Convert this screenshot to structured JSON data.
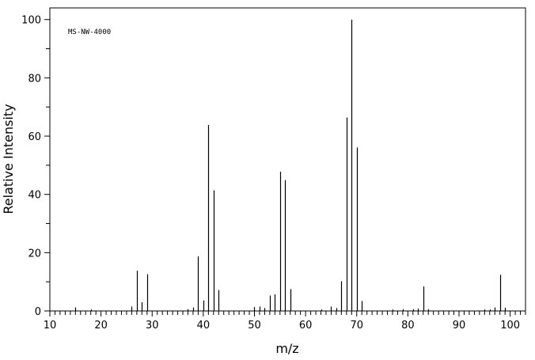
{
  "chart_data": {
    "type": "bar",
    "subtype": "mass-spectrum-stick",
    "title": "",
    "annotation": "MS-NW-4000",
    "xlabel": "m/z",
    "ylabel": "Relative Intensity",
    "xlim": [
      10,
      103
    ],
    "ylim": [
      0,
      104
    ],
    "x_major_ticks": [
      10,
      20,
      30,
      40,
      50,
      60,
      70,
      80,
      90,
      100
    ],
    "x_minor_step": 1,
    "y_major_ticks": [
      0,
      20,
      40,
      60,
      80,
      100
    ],
    "y_minor_step": 10,
    "grid": false,
    "legend": "none",
    "line_color": "#000000",
    "peaks": [
      {
        "mz": 15,
        "intensity": 1.2
      },
      {
        "mz": 18,
        "intensity": 0.5
      },
      {
        "mz": 26,
        "intensity": 1.5
      },
      {
        "mz": 27,
        "intensity": 13.8
      },
      {
        "mz": 28,
        "intensity": 3.0
      },
      {
        "mz": 29,
        "intensity": 12.6
      },
      {
        "mz": 37,
        "intensity": 0.6
      },
      {
        "mz": 38,
        "intensity": 1.2
      },
      {
        "mz": 39,
        "intensity": 18.7
      },
      {
        "mz": 40,
        "intensity": 3.6
      },
      {
        "mz": 41,
        "intensity": 63.8
      },
      {
        "mz": 42,
        "intensity": 41.4
      },
      {
        "mz": 43,
        "intensity": 7.2
      },
      {
        "mz": 50,
        "intensity": 1.3
      },
      {
        "mz": 51,
        "intensity": 1.5
      },
      {
        "mz": 52,
        "intensity": 1.0
      },
      {
        "mz": 53,
        "intensity": 5.3
      },
      {
        "mz": 54,
        "intensity": 5.7
      },
      {
        "mz": 55,
        "intensity": 47.8
      },
      {
        "mz": 56,
        "intensity": 44.9
      },
      {
        "mz": 57,
        "intensity": 7.5
      },
      {
        "mz": 63,
        "intensity": 0.5
      },
      {
        "mz": 65,
        "intensity": 1.5
      },
      {
        "mz": 66,
        "intensity": 1.0
      },
      {
        "mz": 67,
        "intensity": 10.2
      },
      {
        "mz": 68,
        "intensity": 66.4
      },
      {
        "mz": 69,
        "intensity": 100.0
      },
      {
        "mz": 70,
        "intensity": 56.1
      },
      {
        "mz": 71,
        "intensity": 3.4
      },
      {
        "mz": 77,
        "intensity": 0.5
      },
      {
        "mz": 79,
        "intensity": 0.6
      },
      {
        "mz": 81,
        "intensity": 0.6
      },
      {
        "mz": 82,
        "intensity": 0.8
      },
      {
        "mz": 83,
        "intensity": 8.4
      },
      {
        "mz": 84,
        "intensity": 0.6
      },
      {
        "mz": 95,
        "intensity": 0.5
      },
      {
        "mz": 96,
        "intensity": 0.5
      },
      {
        "mz": 97,
        "intensity": 1.2
      },
      {
        "mz": 98,
        "intensity": 12.4
      },
      {
        "mz": 99,
        "intensity": 1.1
      }
    ]
  }
}
